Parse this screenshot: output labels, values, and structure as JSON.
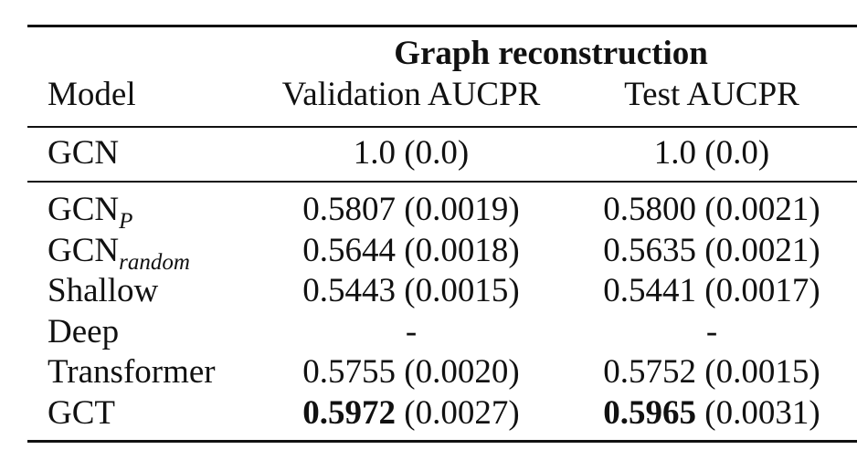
{
  "table": {
    "group_header": "Graph reconstruction",
    "columns": {
      "model": "Model",
      "validation": "Validation AUCPR",
      "test": "Test AUCPR"
    },
    "baseline": {
      "model": "GCN",
      "validation": "1.0 (0.0)",
      "test": "1.0 (0.0)"
    },
    "rows": [
      {
        "model_base": "GCN",
        "model_sub": "P",
        "val_value": "0.5807",
        "val_std": " (0.0019)",
        "test_value": "0.5800",
        "test_std": " (0.0021)"
      },
      {
        "model_base": "GCN",
        "model_sub": "random",
        "val_value": "0.5644",
        "val_std": " (0.0018)",
        "test_value": "0.5635",
        "test_std": " (0.0021)"
      },
      {
        "model_base": "Shallow",
        "model_sub": "",
        "val_value": "0.5443",
        "val_std": " (0.0015)",
        "test_value": "0.5441",
        "test_std": " (0.0017)"
      },
      {
        "model_base": "Deep",
        "model_sub": "",
        "val_value": "-",
        "val_std": "",
        "test_value": "-",
        "test_std": ""
      },
      {
        "model_base": "Transformer",
        "model_sub": "",
        "val_value": "0.5755",
        "val_std": " (0.0020)",
        "test_value": "0.5752",
        "test_std": " (0.0015)"
      },
      {
        "model_base": "GCT",
        "model_sub": "",
        "val_value": "0.5972",
        "val_std": " (0.0027)",
        "test_value": "0.5965",
        "test_std": " (0.0031)"
      }
    ]
  }
}
